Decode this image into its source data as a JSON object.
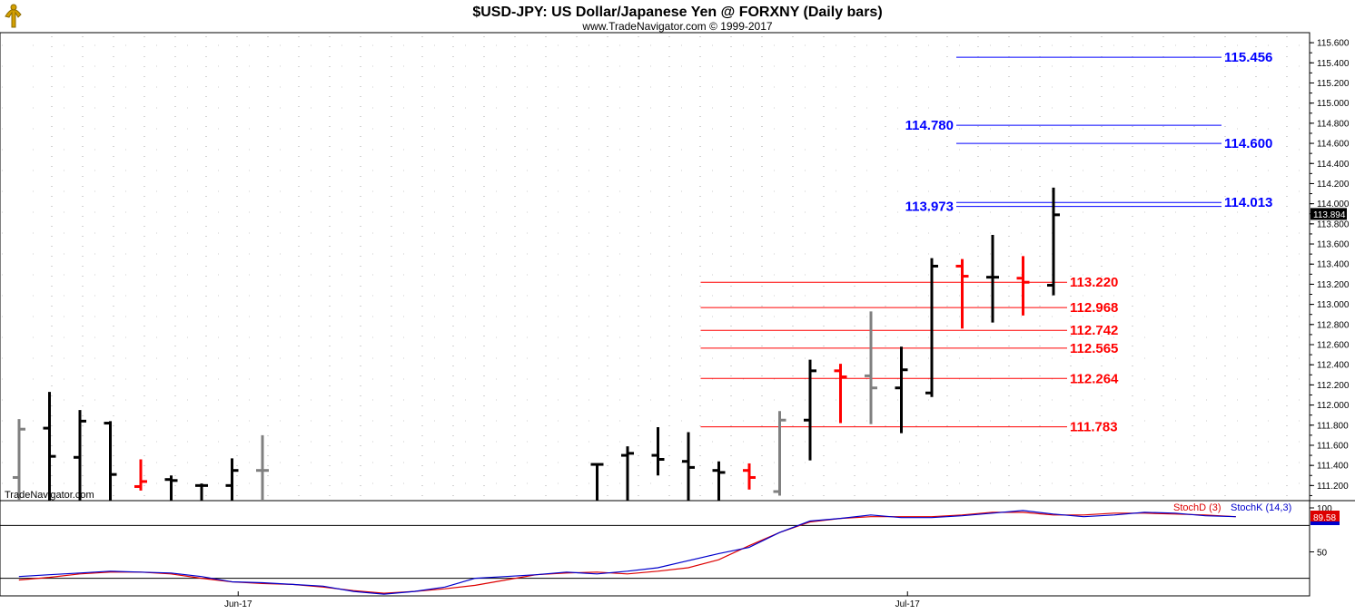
{
  "header": {
    "title": "$USD-JPY:  US Dollar/Japanese Yen @ FORXNY  (Daily bars)",
    "subtitle": "www.TradeNavigator.com © 1999-2017",
    "watermark": "TradeNavigator.com"
  },
  "colors": {
    "up_bar": "#000000",
    "down_bar": "#808080",
    "highlight_bar": "#ff0000",
    "resistance": "#0000ff",
    "support": "#ff0000",
    "stoch_d": "#dd0000",
    "stoch_k": "#0000cc"
  },
  "chart_data": [
    {
      "type": "ohlc",
      "name": "price",
      "ylim": [
        111.05,
        115.7
      ],
      "yticks": [
        "111.200",
        "111.400",
        "111.600",
        "111.800",
        "112.000",
        "112.200",
        "112.400",
        "112.600",
        "112.800",
        "113.000",
        "113.200",
        "113.400",
        "113.600",
        "113.800",
        "114.000",
        "114.200",
        "114.400",
        "114.600",
        "114.800",
        "115.000",
        "115.200",
        "115.400",
        "115.600"
      ],
      "last_price": "113.894",
      "bars": [
        {
          "i": 0,
          "o": 111.28,
          "h": 111.86,
          "l": 111.0,
          "c": 111.76,
          "color": "gray"
        },
        {
          "i": 1,
          "o": 111.77,
          "h": 112.13,
          "l": 111.0,
          "c": 111.49,
          "color": "black"
        },
        {
          "i": 2,
          "o": 111.48,
          "h": 111.95,
          "l": 111.0,
          "c": 111.84,
          "color": "black"
        },
        {
          "i": 3,
          "o": 111.82,
          "h": 111.84,
          "l": 111.0,
          "c": 111.31,
          "color": "black"
        },
        {
          "i": 4,
          "o": 111.19,
          "h": 111.46,
          "l": 111.15,
          "c": 111.24,
          "color": "red"
        },
        {
          "i": 5,
          "o": 111.26,
          "h": 111.3,
          "l": 111.0,
          "c": 111.25,
          "color": "black"
        },
        {
          "i": 6,
          "o": 111.2,
          "h": 111.22,
          "l": 111.0,
          "c": 111.2,
          "color": "black"
        },
        {
          "i": 7,
          "o": 111.2,
          "h": 111.47,
          "l": 111.0,
          "c": 111.35,
          "color": "black"
        },
        {
          "i": 8,
          "o": 111.35,
          "h": 111.7,
          "l": 111.0,
          "c": 111.35,
          "color": "gray"
        },
        {
          "i": 19,
          "o": 111.41,
          "h": 111.41,
          "l": 111.0,
          "c": 111.41,
          "color": "black"
        },
        {
          "i": 20,
          "o": 111.5,
          "h": 111.59,
          "l": 111.0,
          "c": 111.52,
          "color": "black"
        },
        {
          "i": 21,
          "o": 111.5,
          "h": 111.78,
          "l": 111.3,
          "c": 111.46,
          "color": "black"
        },
        {
          "i": 22,
          "o": 111.44,
          "h": 111.73,
          "l": 111.0,
          "c": 111.38,
          "color": "black"
        },
        {
          "i": 23,
          "o": 111.35,
          "h": 111.44,
          "l": 111.0,
          "c": 111.33,
          "color": "black"
        },
        {
          "i": 24,
          "o": 111.35,
          "h": 111.42,
          "l": 111.16,
          "c": 111.28,
          "color": "red"
        },
        {
          "i": 25,
          "o": 111.14,
          "h": 111.94,
          "l": 111.1,
          "c": 111.85,
          "color": "gray"
        },
        {
          "i": 26,
          "o": 111.85,
          "h": 112.45,
          "l": 111.45,
          "c": 112.34,
          "color": "black"
        },
        {
          "i": 27,
          "o": 112.34,
          "h": 112.41,
          "l": 111.82,
          "c": 112.28,
          "color": "red"
        },
        {
          "i": 28,
          "o": 112.29,
          "h": 112.93,
          "l": 111.81,
          "c": 112.17,
          "color": "gray"
        },
        {
          "i": 29,
          "o": 112.17,
          "h": 112.58,
          "l": 111.72,
          "c": 112.35,
          "color": "black"
        },
        {
          "i": 30,
          "o": 112.12,
          "h": 113.46,
          "l": 112.08,
          "c": 113.38,
          "color": "black"
        },
        {
          "i": 31,
          "o": 113.38,
          "h": 113.45,
          "l": 112.76,
          "c": 113.28,
          "color": "red"
        },
        {
          "i": 32,
          "o": 113.27,
          "h": 113.69,
          "l": 112.82,
          "c": 113.27,
          "color": "black"
        },
        {
          "i": 33,
          "o": 113.26,
          "h": 113.48,
          "l": 112.89,
          "c": 113.22,
          "color": "red"
        },
        {
          "i": 34,
          "o": 113.19,
          "h": 114.16,
          "l": 113.09,
          "c": 113.89,
          "color": "black"
        }
      ],
      "resistance_levels": [
        {
          "value": 115.456,
          "label": "115.456",
          "label_side": "right",
          "x_start": 32
        },
        {
          "value": 114.78,
          "label": "114.780",
          "label_side": "left",
          "x_start": 32
        },
        {
          "value": 114.6,
          "label": "114.600",
          "label_side": "right",
          "x_start": 32
        },
        {
          "value": 114.013,
          "label": "114.013",
          "label_side": "right",
          "x_start": 32
        },
        {
          "value": 113.973,
          "label": "113.973",
          "label_side": "left",
          "x_start": 32
        }
      ],
      "support_levels": [
        {
          "value": 113.22,
          "label": "113.220",
          "x_start": 23
        },
        {
          "value": 112.968,
          "label": "112.968",
          "x_start": 23
        },
        {
          "value": 112.742,
          "label": "112.742",
          "x_start": 23
        },
        {
          "value": 112.565,
          "label": "112.565",
          "x_start": 23
        },
        {
          "value": 112.264,
          "label": "112.264",
          "x_start": 23
        },
        {
          "value": 111.783,
          "label": "111.783",
          "x_start": 23
        }
      ],
      "x_labels": [
        {
          "i": 7.5,
          "label": "Jun-17"
        },
        {
          "i": 29.5,
          "label": "Jul-17"
        }
      ]
    },
    {
      "type": "line",
      "name": "stochastic",
      "ylim": [
        0,
        100
      ],
      "yticks": [
        "100",
        "50"
      ],
      "levels": [
        80,
        20
      ],
      "legend": {
        "d_label": "StochD (3)",
        "k_label": "StochK (14,3)"
      },
      "last_value": "89.58",
      "x_start": 0.5,
      "x_step": 1,
      "series": [
        {
          "name": "StochD (3)",
          "values": [
            18,
            21,
            25,
            27,
            27,
            25,
            20,
            16,
            14,
            13,
            10,
            6,
            3,
            5,
            8,
            12,
            18,
            24,
            26,
            27,
            25,
            28,
            32,
            41,
            57,
            72,
            84,
            88,
            90,
            90,
            90,
            92,
            95,
            95,
            92,
            92,
            94,
            94,
            93,
            92,
            90
          ]
        },
        {
          "name": "StochK (14,3)",
          "values": [
            22,
            24,
            26,
            28,
            27,
            26,
            22,
            16,
            15,
            13,
            11,
            5,
            2,
            5,
            10,
            20,
            22,
            24,
            27,
            25,
            28,
            32,
            40,
            48,
            55,
            72,
            85,
            88,
            92,
            89,
            89,
            91,
            94,
            97,
            93,
            90,
            92,
            95,
            94,
            91,
            90
          ]
        }
      ]
    }
  ]
}
